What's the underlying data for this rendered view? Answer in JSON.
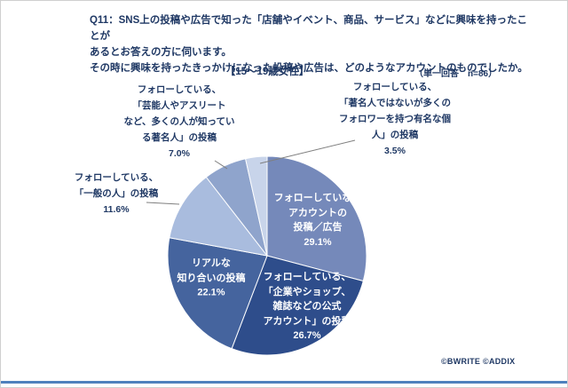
{
  "header": {
    "title_line1": "Q11：SNS上の投稿や広告で知った「店舗やイベント、商品、サービス」などに興味を持ったことが",
    "title_line2": "あるとお答えの方に伺います。",
    "title_line3": "その時に興味を持ったきっかけになった投稿や広告は、どのようなアカウントのものでしたか。",
    "subtitle": "【15～19歳女性】",
    "note": "（単一回答　n=86）"
  },
  "footer": {
    "credit": "©BWRITE ©ADDIX",
    "rule_color": "#4f81bd"
  },
  "chart_data": {
    "type": "pie",
    "title": "【15～19歳女性】",
    "question": "Q11",
    "sample_size": "n=86",
    "answer_type": "単一回答",
    "unit": "%",
    "start_angle": "top",
    "direction": "clockwise",
    "slices": [
      {
        "label": "フォローしていないアカウントの投稿／広告",
        "value": 29.1,
        "color": "#7589ba",
        "placement": "inside",
        "display": "フォローしていない\nアカウントの\n投稿／広告\n29.1%"
      },
      {
        "label": "フォローしている、「企業やショップ、雑誌などの公式アカウント」の投稿",
        "value": 26.7,
        "color": "#2e4d8b",
        "placement": "inside",
        "display": "フォローしている、\n「企業やショップ、\n雑誌などの公式\nアカウント」の投稿\n26.7%"
      },
      {
        "label": "リアルな知り合いの投稿",
        "value": 22.1,
        "color": "#45649e",
        "placement": "inside",
        "display": "リアルな\n知り合いの投稿\n22.1%"
      },
      {
        "label": "フォローしている、「一般の人」の投稿",
        "value": 11.6,
        "color": "#a9bcde",
        "placement": "outside-left",
        "display": "フォローしている、\n「一般の人」の投稿\n11.6%"
      },
      {
        "label": "フォローしている、「芸能人やアスリートなど、多くの人が知っている著名人」の投稿",
        "value": 7.0,
        "color": "#8fa4cc",
        "placement": "outside-top-left",
        "display": "フォローしている、\n「芸能人やアスリート\nなど、多くの人が知ってい\nる著名人」の投稿\n7.0%"
      },
      {
        "label": "フォローしている、「著名人ではないが多くのフォロワーを持つ有名な個人」の投稿",
        "value": 3.5,
        "color": "#c8d4ea",
        "placement": "outside-top-right",
        "display": "フォローしている、\n「著名人ではないが多くの\nフォロワーを持つ有名な個\n人」の投稿\n3.5%"
      }
    ]
  }
}
